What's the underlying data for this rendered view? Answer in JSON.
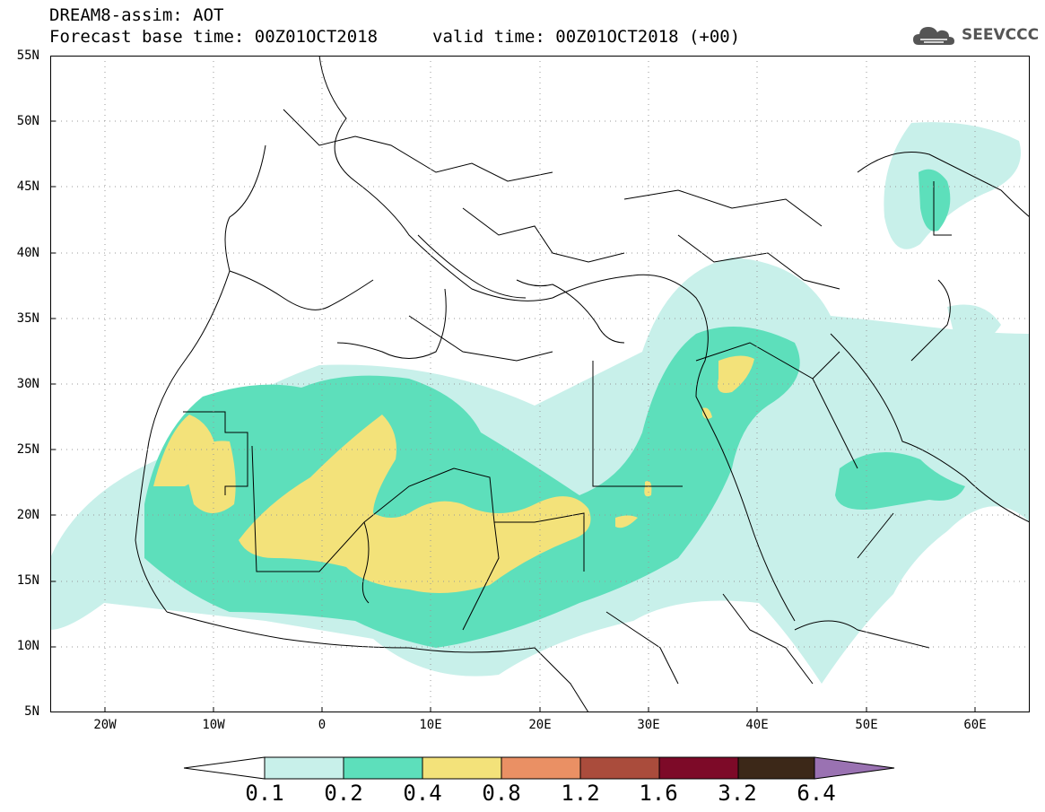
{
  "header": {
    "title": "DREAM8-assim: AOT",
    "forecast_base": "Forecast base time: 00Z01OCT2018",
    "valid_time": "valid time: 00Z01OCT2018 (+00)"
  },
  "logo": {
    "text": "SEEVCCC"
  },
  "map": {
    "lat_labels": [
      "55N",
      "50N",
      "45N",
      "40N",
      "35N",
      "30N",
      "25N",
      "20N",
      "15N",
      "10N",
      "5N"
    ],
    "lon_labels": [
      "20W",
      "10W",
      "0",
      "10E",
      "20E",
      "30E",
      "40E",
      "50E",
      "60E"
    ],
    "lon_range": [
      -25,
      65
    ],
    "lat_range": [
      5,
      55
    ],
    "fill_colors": {
      "c01": "#c8f0ea",
      "c02": "#5ddfbb",
      "c04": "#f3e27a"
    }
  },
  "colorbar": {
    "labels": [
      "0.1",
      "0.2",
      "0.4",
      "0.8",
      "1.2",
      "1.6",
      "3.2",
      "6.4"
    ],
    "colors": [
      "#c8f0ea",
      "#5ddfbb",
      "#f3e27a",
      "#ea9064",
      "#aa4c3c",
      "#7d0a28",
      "#3c2818",
      "#9a72b2"
    ]
  }
}
